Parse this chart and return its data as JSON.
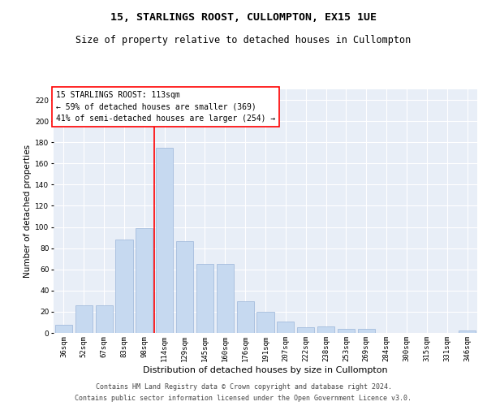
{
  "title": "15, STARLINGS ROOST, CULLOMPTON, EX15 1UE",
  "subtitle": "Size of property relative to detached houses in Cullompton",
  "xlabel": "Distribution of detached houses by size in Cullompton",
  "ylabel": "Number of detached properties",
  "categories": [
    "36sqm",
    "52sqm",
    "67sqm",
    "83sqm",
    "98sqm",
    "114sqm",
    "129sqm",
    "145sqm",
    "160sqm",
    "176sqm",
    "191sqm",
    "207sqm",
    "222sqm",
    "238sqm",
    "253sqm",
    "269sqm",
    "284sqm",
    "300sqm",
    "315sqm",
    "331sqm",
    "346sqm"
  ],
  "values": [
    8,
    26,
    26,
    88,
    99,
    175,
    87,
    65,
    65,
    30,
    20,
    11,
    5,
    6,
    4,
    4,
    0,
    0,
    0,
    0,
    2
  ],
  "bar_color": "#c6d9f0",
  "bar_edgecolor": "#9ab5d8",
  "redline_label": "15 STARLINGS ROOST: 113sqm",
  "annotation_line1": "← 59% of detached houses are smaller (369)",
  "annotation_line2": "41% of semi-detached houses are larger (254) →",
  "ylim": [
    0,
    230
  ],
  "yticks": [
    0,
    20,
    40,
    60,
    80,
    100,
    120,
    140,
    160,
    180,
    200,
    220
  ],
  "plot_bg_color": "#e8eef7",
  "footer1": "Contains HM Land Registry data © Crown copyright and database right 2024.",
  "footer2": "Contains public sector information licensed under the Open Government Licence v3.0.",
  "title_fontsize": 9.5,
  "subtitle_fontsize": 8.5,
  "xlabel_fontsize": 8,
  "ylabel_fontsize": 7.5,
  "tick_fontsize": 6.5,
  "annotation_fontsize": 7,
  "footer_fontsize": 6
}
